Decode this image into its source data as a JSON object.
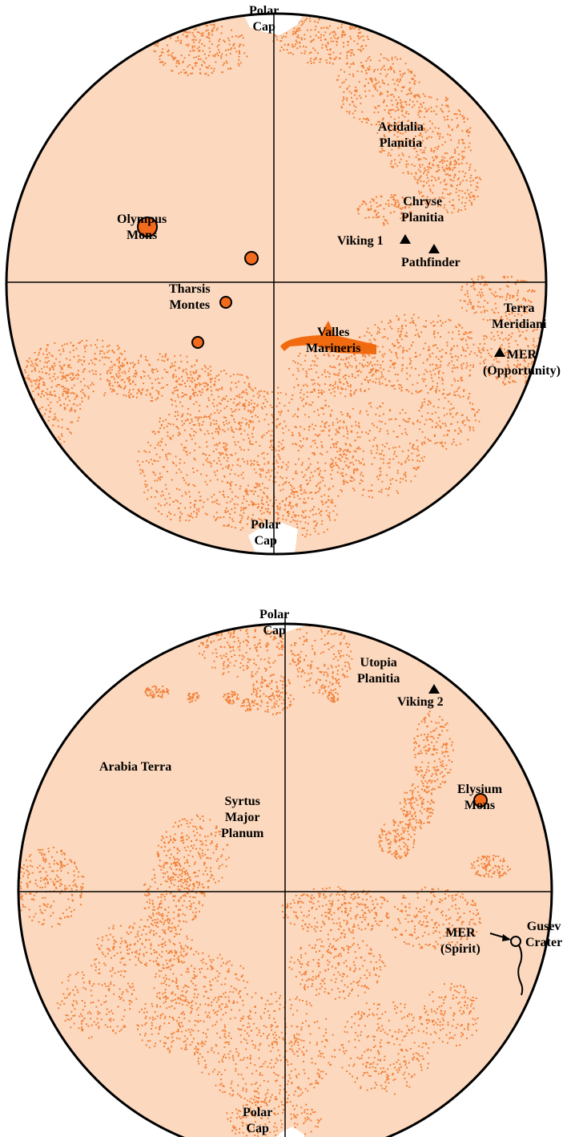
{
  "colors": {
    "disk": "#fcd9be",
    "speckle": "#f2813b",
    "volcano": "#f26a1b",
    "valles": "#f26a10",
    "outline": "#000000",
    "cap": "#ffffff"
  },
  "top_map": {
    "labels": {
      "polar_cap_north": "Polar\nCap",
      "polar_cap_south": "Polar\nCap",
      "acidalia": "Acidalia\nPlanitia",
      "chryse": "Chryse\nPlanitia",
      "olympus": "Olympus\nMons",
      "viking1": "Viking 1",
      "pathfinder": "Pathfinder",
      "tharsis": "Tharsis\nMontes",
      "terra_meridiani": "Terra\nMeridiani",
      "valles": "Valles\nMarineris",
      "mer_opportunity": "MER\n(Opportunity)"
    }
  },
  "bottom_map": {
    "labels": {
      "polar_cap_north": "Polar\nCap",
      "polar_cap_south": "Polar\nCap",
      "utopia": "Utopia\nPlanitia",
      "viking2": "Viking 2",
      "arabia": "Arabia Terra",
      "elysium": "Elysium\nMons",
      "syrtis": "Syrtus\nMajor\nPlanum",
      "mer_spirit": "MER\n(Spirit)",
      "gusev": "Gusev\nCrater"
    }
  }
}
